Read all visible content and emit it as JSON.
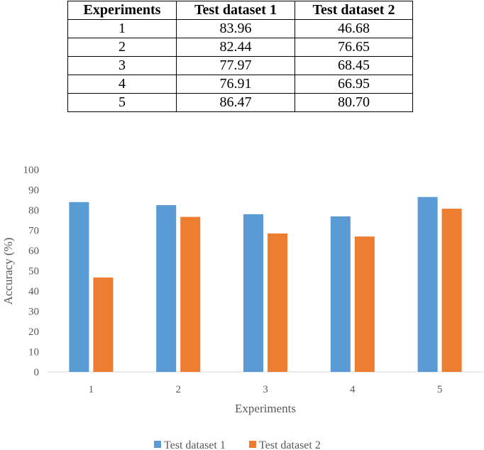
{
  "table": {
    "headers": [
      "Experiments",
      "Test dataset 1",
      "Test dataset 2"
    ],
    "rows": [
      [
        "1",
        "83.96",
        "46.68"
      ],
      [
        "2",
        "82.44",
        "76.65"
      ],
      [
        "3",
        "77.97",
        "68.45"
      ],
      [
        "4",
        "76.91",
        "66.95"
      ],
      [
        "5",
        "86.47",
        "80.70"
      ]
    ]
  },
  "chart_data": {
    "type": "bar",
    "categories": [
      "1",
      "2",
      "3",
      "4",
      "5"
    ],
    "series": [
      {
        "name": "Test dataset 1",
        "values": [
          83.96,
          82.44,
          77.97,
          76.91,
          86.47
        ],
        "color": "#5B9BD5"
      },
      {
        "name": "Test dataset 2",
        "values": [
          46.68,
          76.65,
          68.45,
          66.95,
          80.7
        ],
        "color": "#ED7D31"
      }
    ],
    "xlabel": "Experiments",
    "ylabel": "Accuracy (%)",
    "ylim": [
      0,
      100
    ],
    "yticks": [
      0,
      10,
      20,
      30,
      40,
      50,
      60,
      70,
      80,
      90,
      100
    ],
    "grid": false,
    "legend": "bottom-center"
  }
}
